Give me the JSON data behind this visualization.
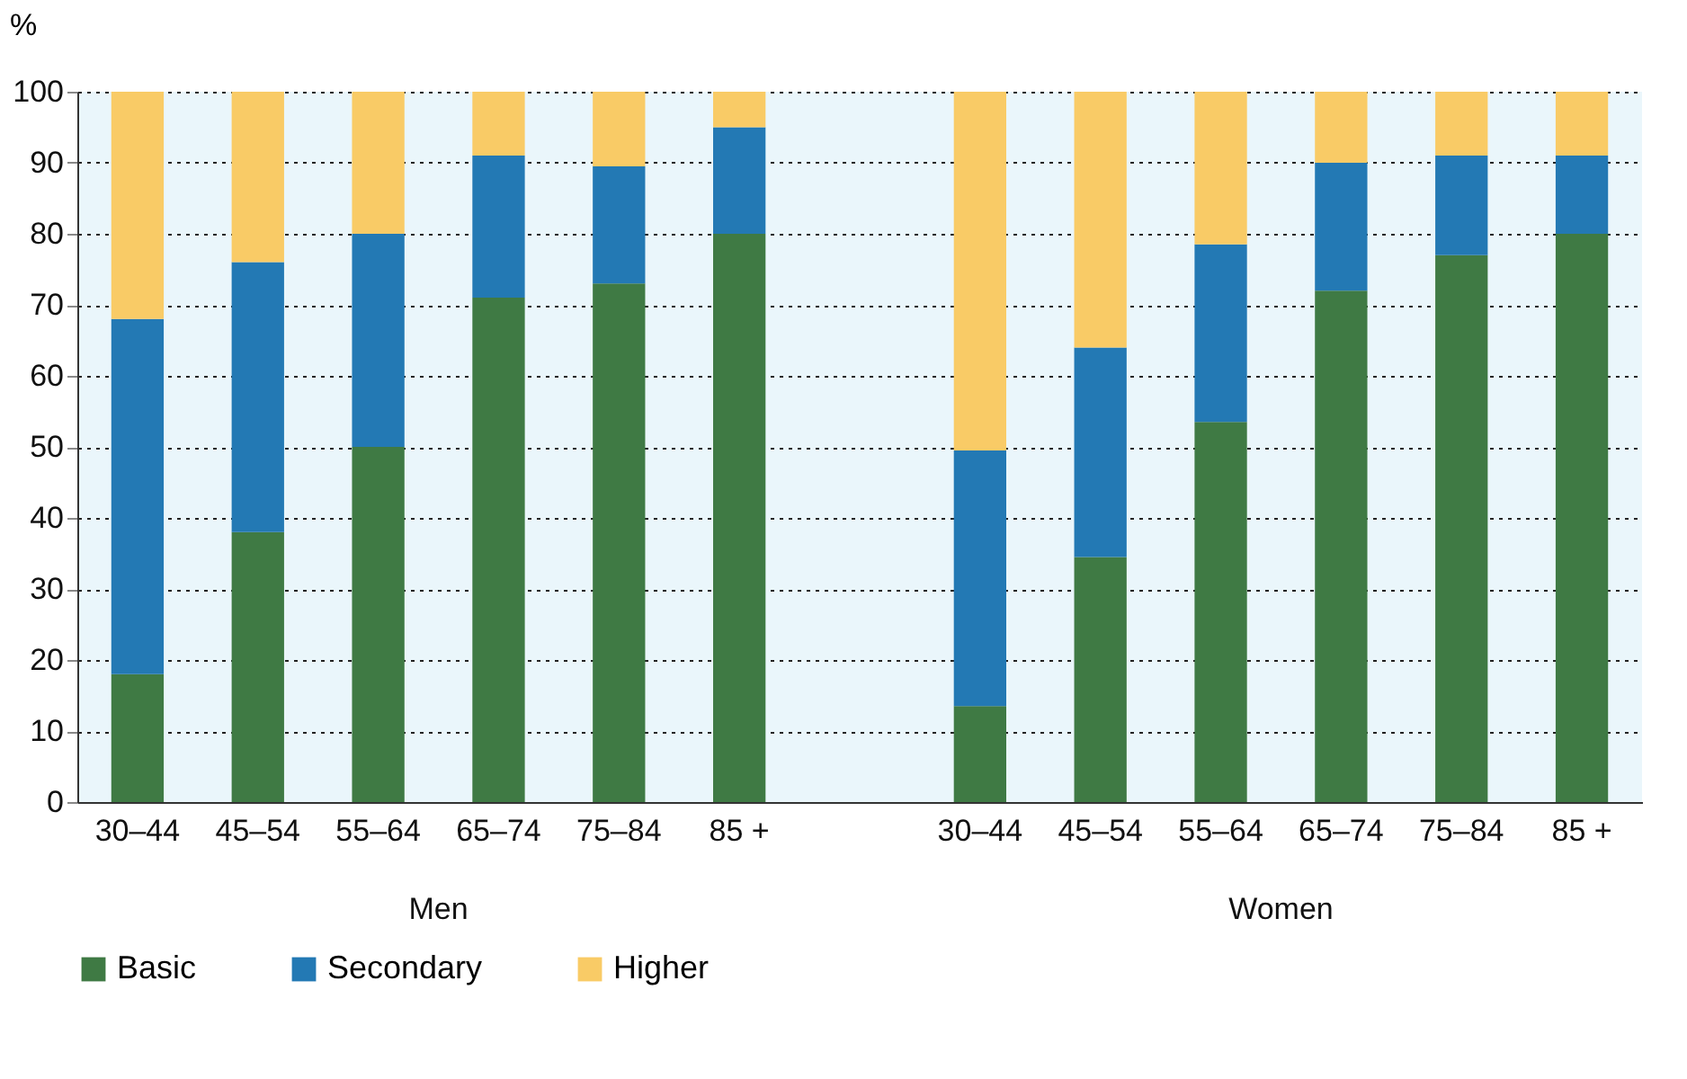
{
  "chart_data": {
    "type": "bar",
    "stacked": true,
    "ylabel": "%",
    "categories": [
      "30–44",
      "45–54",
      "55–64",
      "65–74",
      "75–84",
      "85 +",
      null,
      "30–44",
      "45–54",
      "55–64",
      "65–74",
      "75–84",
      "85 +"
    ],
    "series": [
      {
        "name": "Basic",
        "color": "#3f7a44",
        "values": [
          18,
          38,
          50,
          71,
          73,
          80,
          null,
          13.5,
          34.5,
          53.5,
          72,
          77,
          80
        ]
      },
      {
        "name": "Secondary",
        "color": "#2379b4",
        "values": [
          50,
          38,
          30,
          20,
          16.5,
          15,
          null,
          36,
          29.5,
          25,
          18,
          14,
          11
        ]
      },
      {
        "name": "Higher",
        "color": "#f9cb66",
        "values": [
          32,
          24,
          20,
          9,
          10.5,
          5,
          null,
          50.5,
          36,
          21.5,
          10,
          9,
          9
        ]
      }
    ],
    "annotations": [
      "Men",
      "Women"
    ],
    "ylim": [
      0,
      100
    ],
    "yticks": [
      0,
      10,
      20,
      30,
      40,
      50,
      60,
      70,
      80,
      90,
      100
    ],
    "grid": "y",
    "legend": "bottom"
  }
}
